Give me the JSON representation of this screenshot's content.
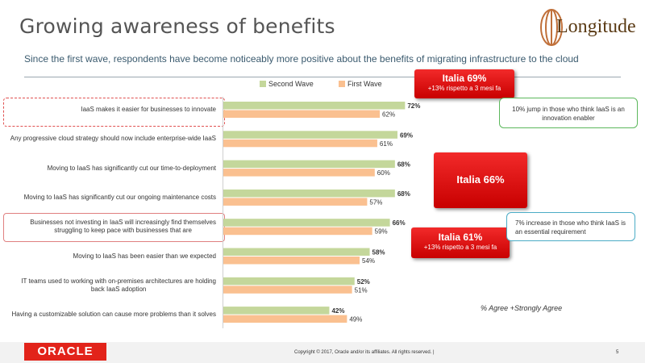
{
  "slide": {
    "title": "Growing awareness of benefits",
    "subtitle": "Since the first wave, respondents have become noticeably more positive about the benefits of migrating infrastructure to the cloud",
    "logo_text": "Longitude",
    "agree_note": "% Agree +Strongly Agree",
    "footer": {
      "oracle": "ORACLE",
      "copyright": "Copyright © 2017, Oracle and/or its affiliates. All rights reserved.  |",
      "page": "5"
    }
  },
  "callouts": {
    "italia69": {
      "title": "Italia 69%",
      "sub": "+13% rispetto a 3 mesi fa"
    },
    "italia66": {
      "title": "Italia 66%"
    },
    "italia61": {
      "title": "Italia 61%",
      "sub": "+13% rispetto a 3 mesi fa"
    },
    "note_innovation": "10% jump in those who think IaaS is an innovation enabler",
    "note_essential": "7% increase in those who think IaaS is an essential requirement"
  },
  "colors": {
    "second_wave": "#c4d79b",
    "first_wave": "#fac090",
    "green_border": "#5cb85c",
    "teal_border": "#4bacc6",
    "red": "#e2231a"
  },
  "chart_data": {
    "type": "bar",
    "orientation": "horizontal",
    "categories": [
      "IaaS makes it easier for businesses to innovate",
      "Any progressive cloud strategy should now include enterprise-wide IaaS",
      "Moving to IaaS has significantly cut our time-to-deployment",
      "Moving to IaaS has significantly cut our ongoing maintenance costs",
      "Businesses not investing in IaaS will increasingly find themselves struggling to keep pace with businesses that are",
      "Moving to IaaS has been easier than we expected",
      "IT teams used to working with on-premises architectures are holding back IaaS adoption",
      "Having a customizable solution can cause more problems than it solves"
    ],
    "category_lines": [
      [
        "IaaS makes it easier for businesses to innovate"
      ],
      [
        "Any progressive cloud strategy should now include enterprise-wide IaaS"
      ],
      [
        "Moving to IaaS has significantly cut our time-to-deployment"
      ],
      [
        "Moving to IaaS has significantly cut our ongoing maintenance costs"
      ],
      [
        "Businesses not investing in IaaS will increasingly find themselves",
        "struggling to keep pace with businesses that are"
      ],
      [
        "Moving to IaaS has been easier than we expected"
      ],
      [
        "IT teams used to working with on-premises architectures are holding",
        "back IaaS adoption"
      ],
      [
        "Having a customizable solution can cause more problems than it solves"
      ]
    ],
    "series": [
      {
        "name": "Second Wave",
        "values": [
          72,
          69,
          68,
          68,
          66,
          58,
          52,
          42
        ],
        "labels": [
          "72%",
          "69%",
          "68%",
          "68%",
          "66%",
          "58%",
          "52%",
          "42%"
        ]
      },
      {
        "name": "First Wave",
        "values": [
          62,
          61,
          60,
          57,
          59,
          54,
          51,
          49
        ],
        "labels": [
          "62%",
          "61%",
          "60%",
          "57%",
          "59%",
          "54%",
          "51%",
          "49%"
        ]
      }
    ],
    "ylim": [
      0,
      100
    ],
    "legend": "top"
  }
}
